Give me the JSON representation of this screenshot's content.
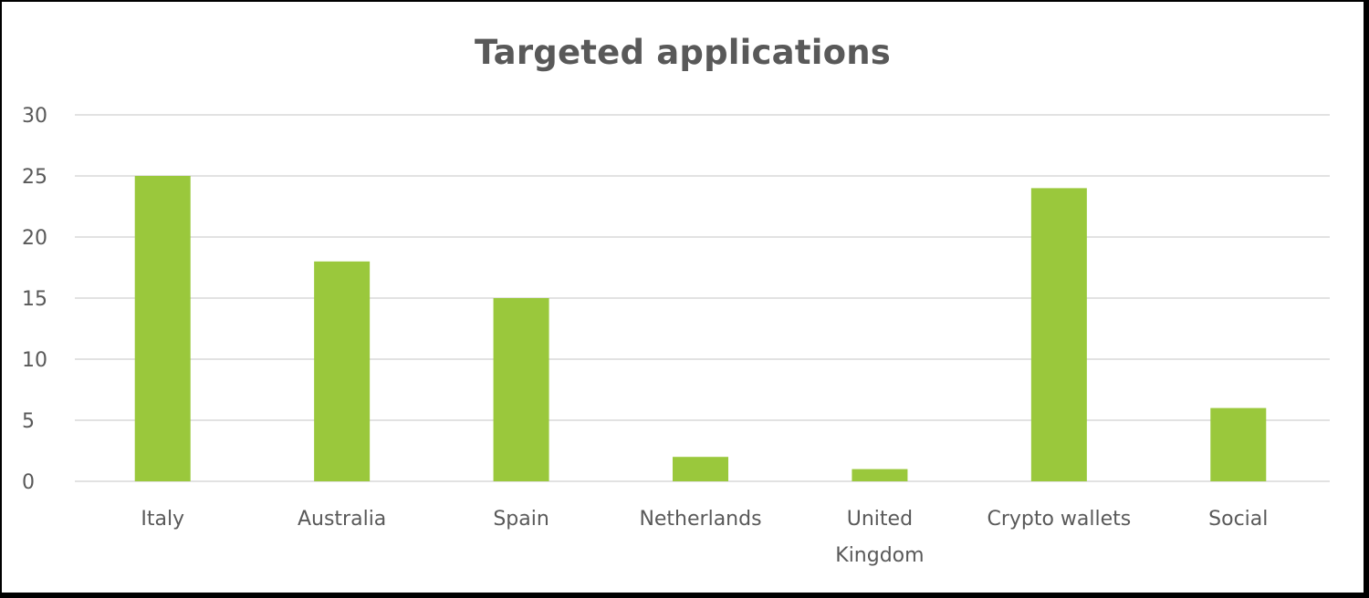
{
  "chart_data": {
    "type": "bar",
    "title": "Targeted applications",
    "categories": [
      "Italy",
      "Australia",
      "Spain",
      "Netherlands",
      "United Kingdom",
      "Crypto wallets",
      "Social"
    ],
    "values": [
      25,
      18,
      15,
      2,
      1,
      24,
      6
    ],
    "ylim": [
      0,
      30
    ],
    "yticks": [
      0,
      5,
      10,
      15,
      20,
      25,
      30
    ],
    "grid": true,
    "legend": "none",
    "bar_color": "#9ac83c",
    "grid_color": "#d9d9d9",
    "text_color": "#595959"
  }
}
